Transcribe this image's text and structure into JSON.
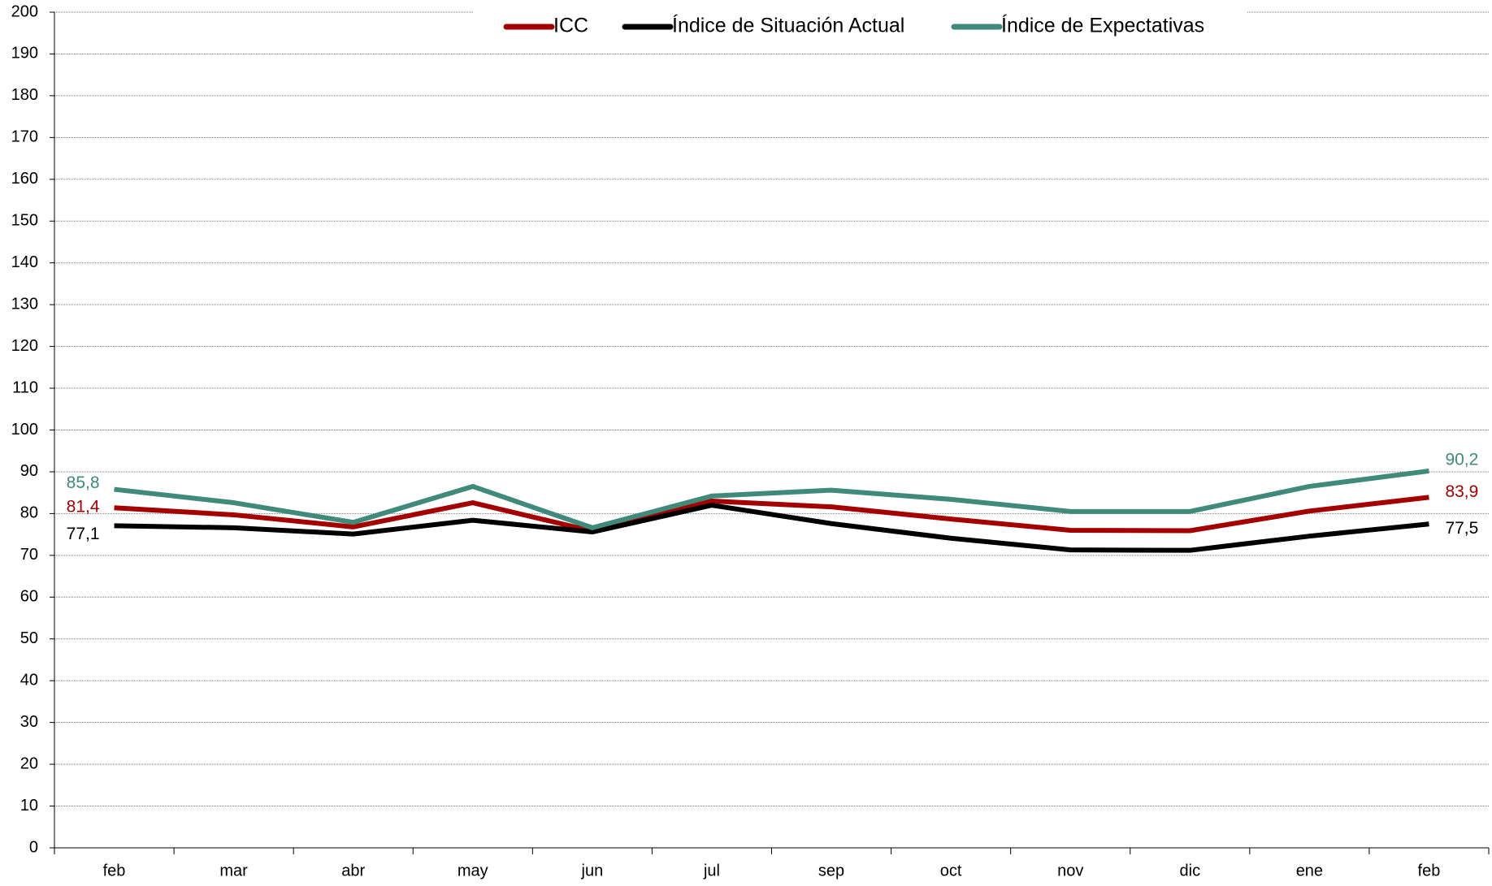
{
  "chart_data": {
    "type": "line",
    "categories": [
      "feb",
      "mar",
      "abr",
      "may",
      "jun",
      "jul",
      "sep",
      "oct",
      "nov",
      "dic",
      "ene",
      "feb"
    ],
    "series": [
      {
        "name": "ICC",
        "color": "#a50000",
        "values": [
          81.4,
          79.7,
          76.8,
          82.6,
          75.8,
          83.0,
          81.6,
          78.7,
          76.0,
          75.9,
          80.6,
          83.9
        ],
        "value_labels": [
          "81,4",
          null,
          null,
          null,
          null,
          null,
          null,
          null,
          null,
          null,
          null,
          "83,9"
        ]
      },
      {
        "name": "Índice de Situación Actual",
        "color": "#000000",
        "values": [
          77.1,
          76.6,
          75.1,
          78.4,
          75.6,
          82.0,
          77.6,
          74.1,
          71.3,
          71.2,
          74.6,
          77.5
        ],
        "value_labels": [
          "77,1",
          null,
          null,
          null,
          null,
          null,
          null,
          null,
          null,
          null,
          null,
          "77,5"
        ]
      },
      {
        "name": "Índice de Expectativas",
        "color": "#3f8a7a",
        "values": [
          85.8,
          82.6,
          77.9,
          86.5,
          76.6,
          84.2,
          85.6,
          83.4,
          80.5,
          80.5,
          86.5,
          90.2
        ],
        "value_labels": [
          "85,8",
          null,
          null,
          null,
          null,
          null,
          null,
          null,
          null,
          null,
          null,
          "90,2"
        ]
      }
    ],
    "ylim": [
      0,
      200
    ],
    "yticks": [
      0,
      10,
      20,
      30,
      40,
      50,
      60,
      70,
      80,
      90,
      100,
      110,
      120,
      130,
      140,
      150,
      160,
      170,
      180,
      190,
      200
    ],
    "grid": true,
    "legend": "top"
  }
}
